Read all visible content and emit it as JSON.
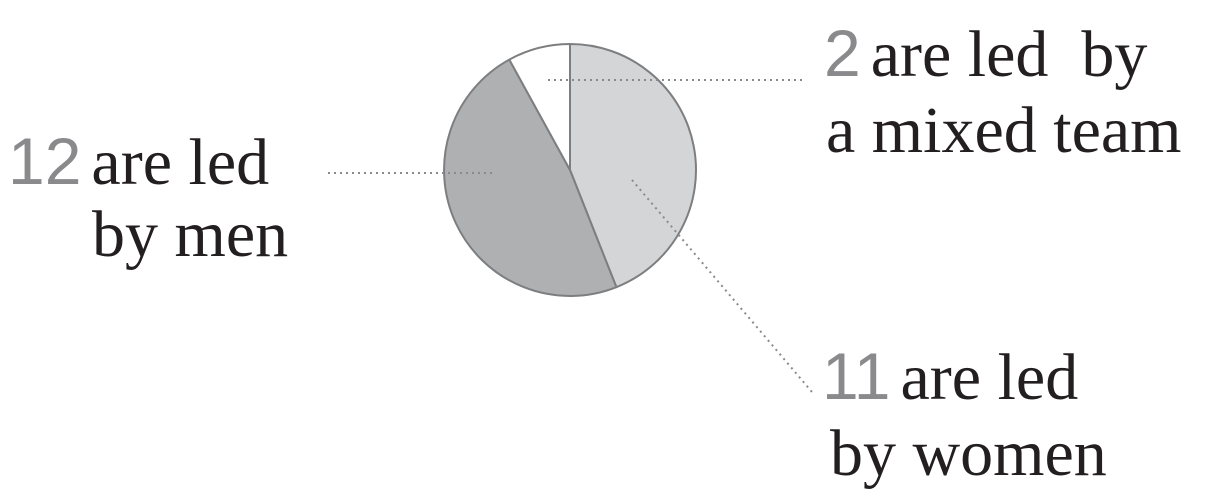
{
  "chart_data": {
    "type": "pie",
    "slices": [
      {
        "category": "men",
        "value": 12,
        "color": "#afb0b2"
      },
      {
        "category": "women",
        "value": 11,
        "color": "#d4d5d7"
      },
      {
        "category": "mixed team",
        "value": 2,
        "color": "#ffffff"
      }
    ],
    "labels": {
      "men": {
        "value": "12",
        "line1": "are led",
        "line2": "by men"
      },
      "mixed": {
        "value": "2",
        "line1": "are led  by",
        "line2": "a mixed team"
      },
      "women": {
        "value": "11",
        "line1": "are led",
        "line2": "by women"
      }
    },
    "stroke_color": "#7d7e80",
    "leader_color": "#8a8a8c"
  }
}
